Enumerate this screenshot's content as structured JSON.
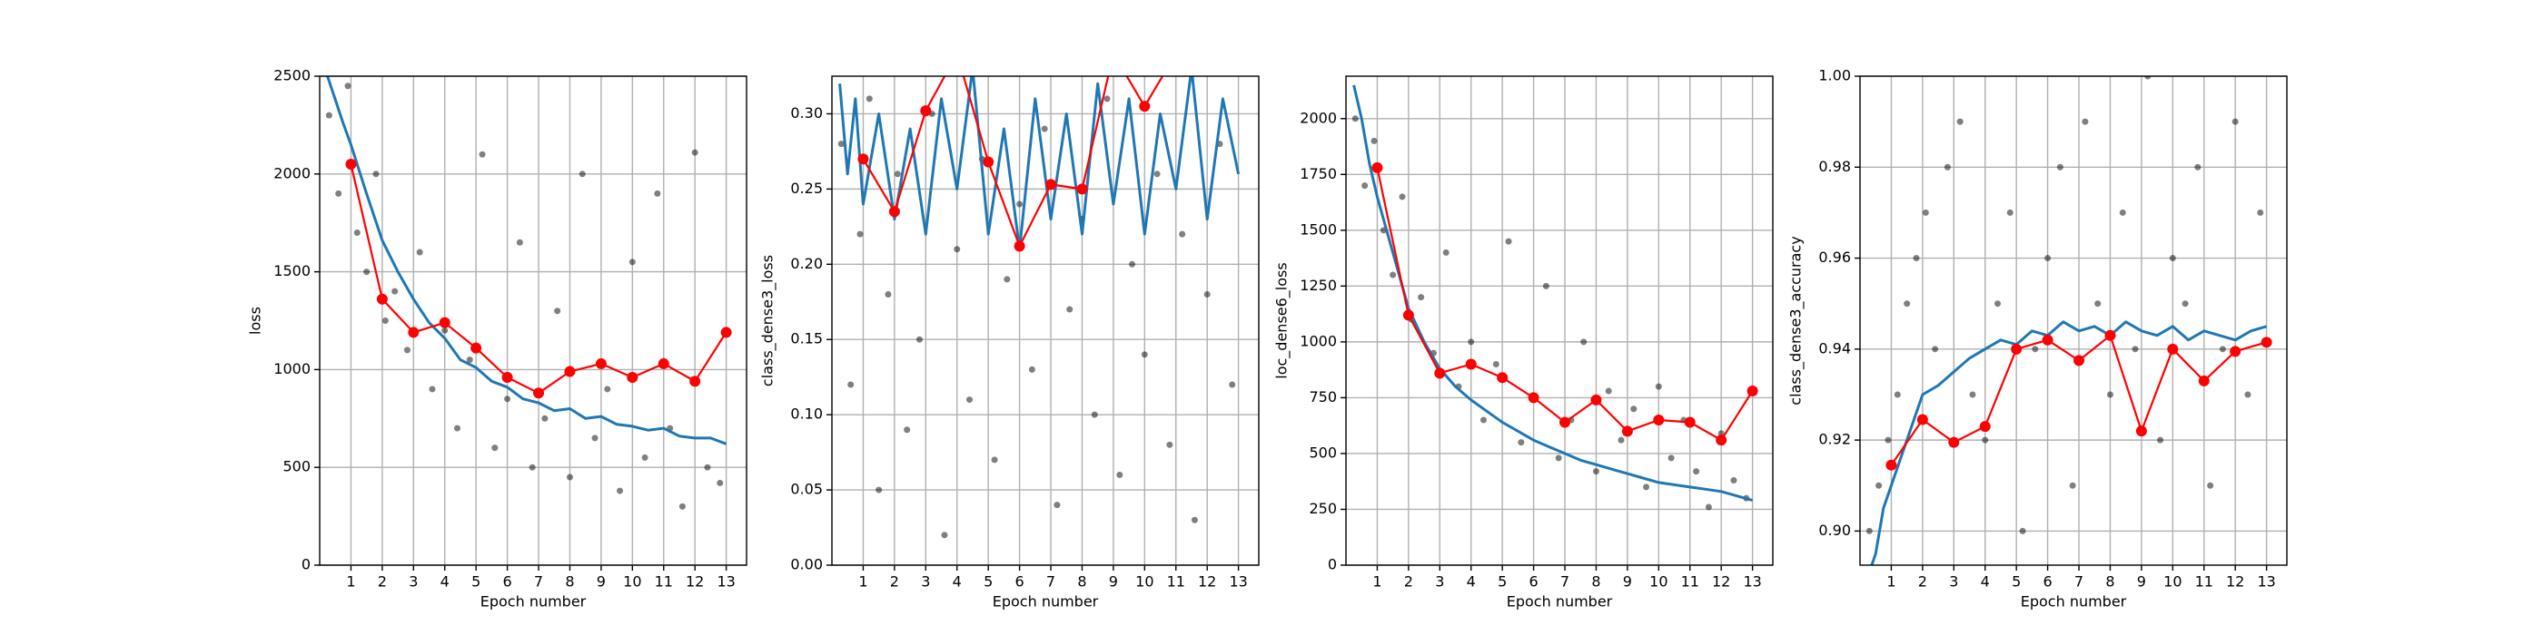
{
  "chart_data": [
    {
      "type": "line",
      "xlabel": "Epoch number",
      "ylabel": "loss",
      "xlim": [
        0,
        13.65
      ],
      "ylim": [
        0,
        2500
      ],
      "xticks": [
        1,
        2,
        3,
        4,
        5,
        6,
        7,
        8,
        9,
        10,
        11,
        12,
        13
      ],
      "yticks": [
        0,
        500,
        1000,
        1500,
        2000,
        2500
      ],
      "grid": true,
      "series": [
        {
          "kind": "scatter",
          "color": "#000000",
          "alpha": 0.5,
          "x": [
            0.3,
            0.6,
            0.9,
            1.2,
            1.5,
            1.8,
            2.1,
            2.4,
            2.8,
            3.2,
            3.6,
            4.0,
            4.4,
            4.8,
            5.2,
            5.6,
            6.0,
            6.4,
            6.8,
            7.2,
            7.6,
            8.0,
            8.4,
            8.8,
            9.2,
            9.6,
            10.0,
            10.4,
            10.8,
            11.2,
            11.6,
            12.0,
            12.4,
            12.8
          ],
          "values": [
            2300,
            1900,
            2450,
            1700,
            1500,
            2000,
            1250,
            1400,
            1100,
            1600,
            900,
            1200,
            700,
            1050,
            2100,
            600,
            850,
            1650,
            500,
            750,
            1300,
            450,
            2000,
            650,
            900,
            380,
            1550,
            550,
            1900,
            700,
            300,
            2110,
            500,
            420
          ]
        },
        {
          "kind": "line",
          "color": "#1f77b4",
          "x": [
            0.25,
            0.5,
            0.75,
            1,
            1.5,
            2,
            2.5,
            3,
            3.5,
            4,
            4.5,
            5,
            5.5,
            6,
            6.5,
            7,
            7.5,
            8,
            8.5,
            9,
            9.5,
            10,
            10.5,
            11,
            11.5,
            12,
            12.5,
            13
          ],
          "values": [
            2500,
            2380,
            2260,
            2150,
            1900,
            1660,
            1500,
            1360,
            1240,
            1160,
            1050,
            1010,
            940,
            910,
            850,
            830,
            790,
            800,
            750,
            760,
            720,
            710,
            690,
            700,
            660,
            650,
            650,
            620
          ]
        },
        {
          "kind": "marker-line",
          "color": "#ff0000",
          "x": [
            1,
            2,
            3,
            4,
            5,
            6,
            7,
            8,
            9,
            10,
            11,
            12,
            13
          ],
          "values": [
            2050,
            1360,
            1190,
            1240,
            1110,
            960,
            880,
            990,
            1030,
            960,
            1030,
            940,
            1190
          ]
        }
      ]
    },
    {
      "type": "line",
      "xlabel": "Epoch number",
      "ylabel": "class_dense3_loss",
      "xlim": [
        0,
        13.65
      ],
      "ylim": [
        0,
        0.325
      ],
      "xticks": [
        1,
        2,
        3,
        4,
        5,
        6,
        7,
        8,
        9,
        10,
        11,
        12,
        13
      ],
      "yticks": [
        {
          "value": 0,
          "label": "0.00"
        },
        {
          "value": 0.05,
          "label": "0.05"
        },
        {
          "value": 0.1,
          "label": "0.10"
        },
        {
          "value": 0.15,
          "label": "0.15"
        },
        {
          "value": 0.2,
          "label": "0.20"
        },
        {
          "value": 0.25,
          "label": "0.25"
        },
        {
          "value": 0.3,
          "label": "0.30"
        }
      ],
      "grid": true,
      "series": [
        {
          "kind": "scatter",
          "color": "#000000",
          "alpha": 0.5,
          "x": [
            0.3,
            0.6,
            0.9,
            1.2,
            1.5,
            1.8,
            2.1,
            2.4,
            2.8,
            3.2,
            3.6,
            4.0,
            4.4,
            4.8,
            5.2,
            5.6,
            6.0,
            6.4,
            6.8,
            7.2,
            7.6,
            8.0,
            8.4,
            8.8,
            9.2,
            9.6,
            10.0,
            10.4,
            10.8,
            11.2,
            11.6,
            12.0,
            12.4,
            12.8
          ],
          "values": [
            0.28,
            0.12,
            0.22,
            0.31,
            0.05,
            0.18,
            0.26,
            0.09,
            0.15,
            0.3,
            0.02,
            0.21,
            0.11,
            0.27,
            0.07,
            0.19,
            0.24,
            0.13,
            0.29,
            0.04,
            0.17,
            0.23,
            0.1,
            0.31,
            0.06,
            0.2,
            0.14,
            0.26,
            0.08,
            0.22,
            0.03,
            0.18,
            0.28,
            0.12
          ]
        },
        {
          "kind": "line",
          "color": "#1f77b4",
          "x": [
            0.25,
            0.5,
            0.75,
            1,
            1.5,
            2,
            2.5,
            3,
            3.5,
            4,
            4.5,
            5,
            5.5,
            6,
            6.5,
            7,
            7.5,
            8,
            8.5,
            9,
            9.5,
            10,
            10.5,
            11,
            11.5,
            12,
            12.5,
            13
          ],
          "values": [
            0.32,
            0.26,
            0.31,
            0.24,
            0.3,
            0.23,
            0.29,
            0.22,
            0.31,
            0.25,
            0.33,
            0.22,
            0.29,
            0.21,
            0.31,
            0.23,
            0.3,
            0.22,
            0.32,
            0.24,
            0.31,
            0.22,
            0.3,
            0.25,
            0.33,
            0.23,
            0.31,
            0.26
          ]
        },
        {
          "kind": "marker-line",
          "color": "#ff0000",
          "x": [
            1,
            2,
            3,
            4,
            5,
            6,
            7,
            8,
            9,
            10,
            11,
            12,
            13
          ],
          "values": [
            0.27,
            0.235,
            0.302,
            0.34,
            0.268,
            0.212,
            0.253,
            0.25,
            0.34,
            0.305,
            0.34,
            0.34,
            0.34
          ]
        }
      ]
    },
    {
      "type": "line",
      "xlabel": "Epoch number",
      "ylabel": "loc_dense6_loss",
      "xlim": [
        0,
        13.65
      ],
      "ylim": [
        0,
        2190
      ],
      "xticks": [
        1,
        2,
        3,
        4,
        5,
        6,
        7,
        8,
        9,
        10,
        11,
        12,
        13
      ],
      "yticks": [
        0,
        250,
        500,
        750,
        1000,
        1250,
        1500,
        1750,
        2000
      ],
      "grid": true,
      "series": [
        {
          "kind": "scatter",
          "color": "#000000",
          "alpha": 0.5,
          "x": [
            0.3,
            0.6,
            0.9,
            1.2,
            1.5,
            1.8,
            2.1,
            2.4,
            2.8,
            3.2,
            3.6,
            4.0,
            4.4,
            4.8,
            5.2,
            5.6,
            6.0,
            6.4,
            6.8,
            7.2,
            7.6,
            8.0,
            8.4,
            8.8,
            9.2,
            9.6,
            10.0,
            10.4,
            10.8,
            11.2,
            11.6,
            12.0,
            12.4,
            12.8
          ],
          "values": [
            2000,
            1700,
            1900,
            1500,
            1300,
            1650,
            1100,
            1200,
            950,
            1400,
            800,
            1000,
            650,
            900,
            1450,
            550,
            750,
            1250,
            480,
            650,
            1000,
            420,
            780,
            560,
            700,
            350,
            800,
            480,
            650,
            420,
            260,
            590,
            380,
            300
          ]
        },
        {
          "kind": "line",
          "color": "#1f77b4",
          "x": [
            0.25,
            0.5,
            0.75,
            1,
            1.5,
            2,
            2.5,
            3,
            3.5,
            4,
            4.5,
            5,
            5.5,
            6,
            6.5,
            7,
            7.5,
            8,
            8.5,
            9,
            9.5,
            10,
            10.5,
            11,
            11.5,
            12,
            12.5,
            13
          ],
          "values": [
            2150,
            2000,
            1800,
            1650,
            1400,
            1150,
            1000,
            880,
            800,
            740,
            690,
            640,
            600,
            560,
            530,
            500,
            470,
            450,
            430,
            410,
            390,
            370,
            360,
            350,
            340,
            330,
            310,
            290
          ]
        },
        {
          "kind": "marker-line",
          "color": "#ff0000",
          "x": [
            1,
            2,
            3,
            4,
            5,
            6,
            7,
            8,
            9,
            10,
            11,
            12,
            13
          ],
          "values": [
            1780,
            1120,
            860,
            900,
            840,
            750,
            640,
            740,
            600,
            650,
            640,
            560,
            780
          ]
        }
      ]
    },
    {
      "type": "line",
      "xlabel": "Epoch number",
      "ylabel": "class_dense3_accuracy",
      "xlim": [
        0,
        13.65
      ],
      "ylim": [
        0.8925,
        1.0
      ],
      "xticks": [
        1,
        2,
        3,
        4,
        5,
        6,
        7,
        8,
        9,
        10,
        11,
        12,
        13
      ],
      "yticks": [
        {
          "value": 0.9,
          "label": "0.90"
        },
        {
          "value": 0.92,
          "label": "0.92"
        },
        {
          "value": 0.94,
          "label": "0.94"
        },
        {
          "value": 0.96,
          "label": "0.96"
        },
        {
          "value": 0.98,
          "label": "0.98"
        },
        {
          "value": 1.0,
          "label": "1.00"
        }
      ],
      "grid": true,
      "series": [
        {
          "kind": "scatter",
          "color": "#000000",
          "alpha": 0.5,
          "x": [
            0.3,
            0.6,
            0.9,
            1.2,
            1.5,
            1.8,
            2.1,
            2.4,
            2.8,
            3.2,
            3.6,
            4.0,
            4.4,
            4.8,
            5.2,
            5.6,
            6.0,
            6.4,
            6.8,
            7.2,
            7.6,
            8.0,
            8.4,
            8.8,
            9.2,
            9.6,
            10.0,
            10.4,
            10.8,
            11.2,
            11.6,
            12.0,
            12.4,
            12.8
          ],
          "values": [
            0.9,
            0.91,
            0.92,
            0.93,
            0.95,
            0.96,
            0.97,
            0.94,
            0.98,
            0.99,
            0.93,
            0.92,
            0.95,
            0.97,
            0.9,
            0.94,
            0.96,
            0.98,
            0.91,
            0.99,
            0.95,
            0.93,
            0.97,
            0.94,
            1.0,
            0.92,
            0.96,
            0.95,
            0.98,
            0.91,
            0.94,
            0.99,
            0.93,
            0.97
          ]
        },
        {
          "kind": "line",
          "color": "#1f77b4",
          "x": [
            0.25,
            0.5,
            0.75,
            1,
            1.5,
            2,
            2.5,
            3,
            3.5,
            4,
            4.5,
            5,
            5.5,
            6,
            6.5,
            7,
            7.5,
            8,
            8.5,
            9,
            9.5,
            10,
            10.5,
            11,
            11.5,
            12,
            12.5,
            13
          ],
          "values": [
            0.89,
            0.895,
            0.905,
            0.91,
            0.92,
            0.93,
            0.932,
            0.935,
            0.938,
            0.94,
            0.942,
            0.941,
            0.944,
            0.943,
            0.946,
            0.944,
            0.945,
            0.943,
            0.946,
            0.944,
            0.943,
            0.945,
            0.942,
            0.944,
            0.943,
            0.942,
            0.944,
            0.945
          ]
        },
        {
          "kind": "marker-line",
          "color": "#ff0000",
          "x": [
            1,
            2,
            3,
            4,
            5,
            6,
            7,
            8,
            9,
            10,
            11,
            12,
            13
          ],
          "values": [
            0.9145,
            0.9245,
            0.9195,
            0.923,
            0.94,
            0.942,
            0.9375,
            0.943,
            0.922,
            0.94,
            0.933,
            0.9395,
            0.9415
          ]
        }
      ]
    }
  ]
}
